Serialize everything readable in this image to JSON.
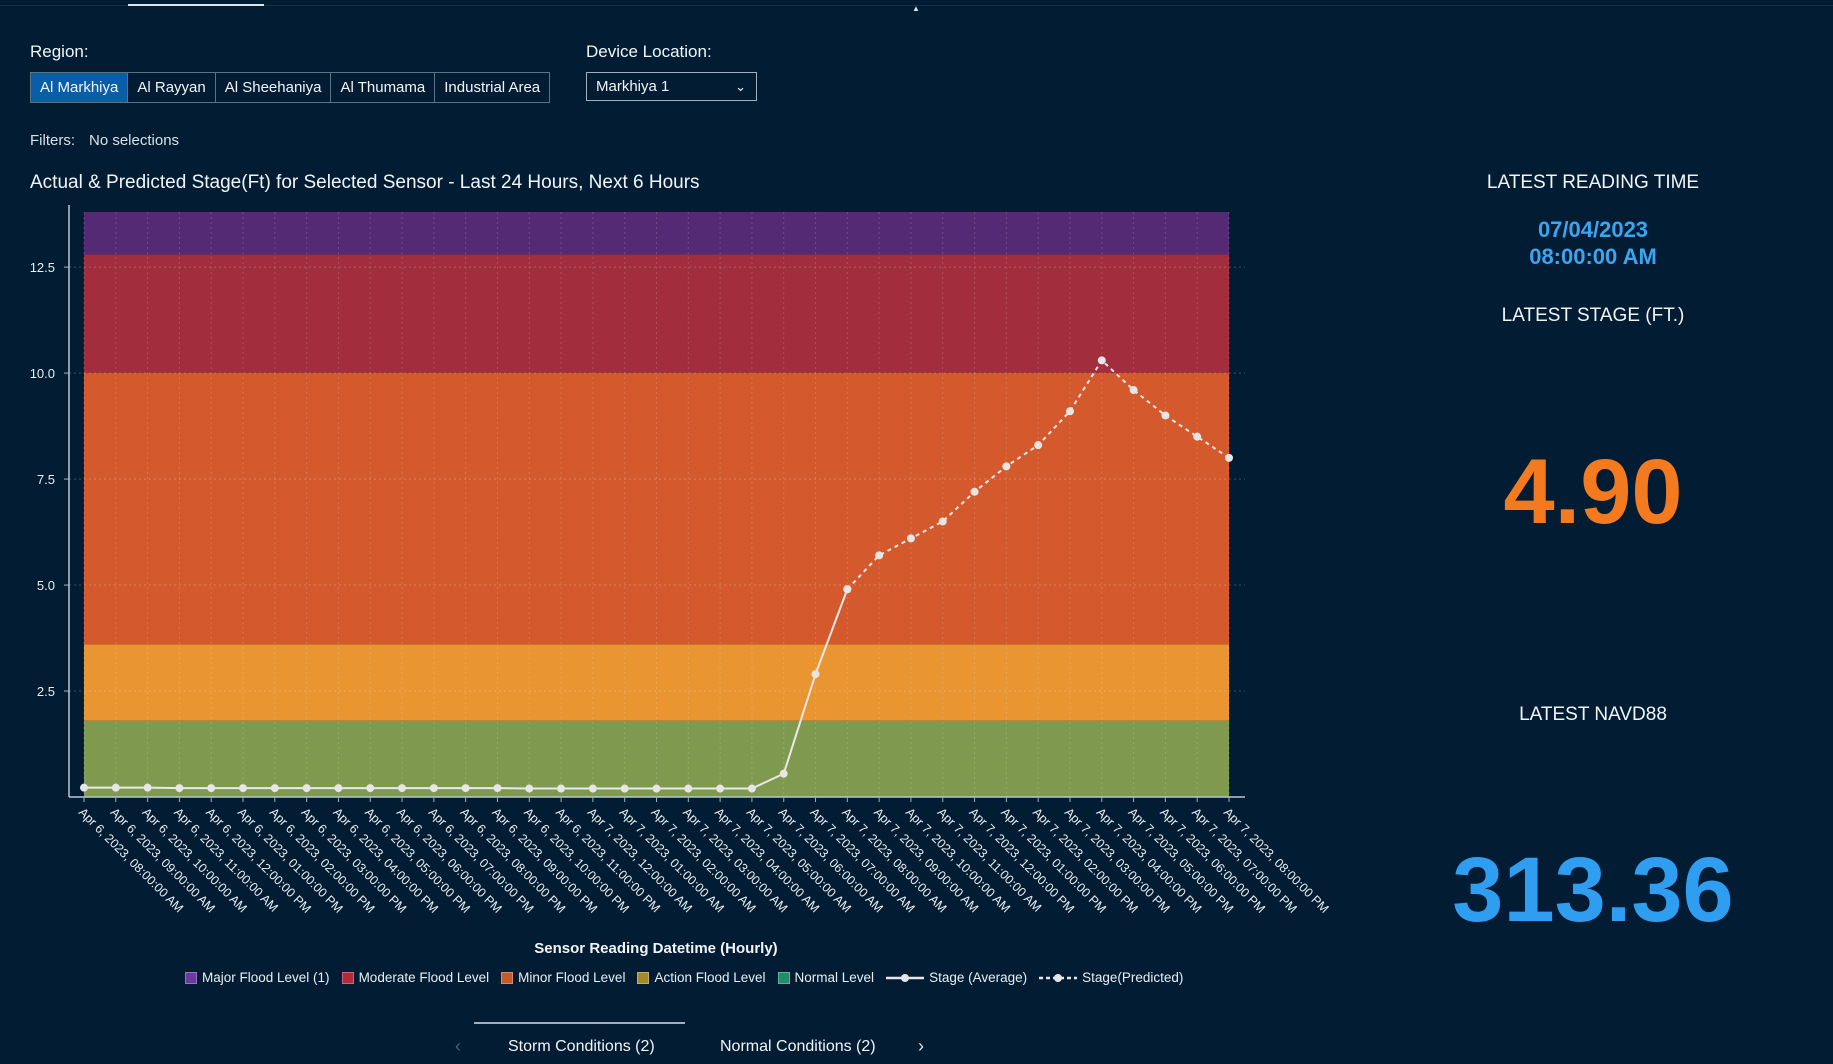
{
  "region": {
    "label": "Region:",
    "options": [
      "Al Markhiya",
      "Al Rayyan",
      "Al Sheehaniya",
      "Al Thumama",
      "Industrial Area"
    ],
    "selected": "Al Markhiya"
  },
  "device": {
    "label": "Device Location:",
    "value": "Markhiya 1"
  },
  "filters": {
    "label": "Filters:",
    "value": "No selections"
  },
  "chart_title": "Actual & Predicted Stage(Ft) for Selected Sensor - Last 24 Hours, Next 6 Hours",
  "chart_data": {
    "type": "line",
    "title": "Actual & Predicted Stage(Ft) for Selected Sensor - Last 24 Hours, Next 6 Hours",
    "xlabel": "Sensor Reading Datetime (Hourly)",
    "ylabel": "",
    "ylim": [
      0,
      13.8
    ],
    "yticks": [
      "2.5",
      "5.0",
      "7.5",
      "10.0",
      "12.5"
    ],
    "grid": true,
    "categories": [
      "Apr 6, 2023, 08:00:00 AM",
      "Apr 6, 2023, 09:00:00 AM",
      "Apr 6, 2023, 10:00:00 AM",
      "Apr 6, 2023, 11:00:00 AM",
      "Apr 6, 2023, 12:00:00 PM",
      "Apr 6, 2023, 01:00:00 PM",
      "Apr 6, 2023, 02:00:00 PM",
      "Apr 6, 2023, 03:00:00 PM",
      "Apr 6, 2023, 04:00:00 PM",
      "Apr 6, 2023, 05:00:00 PM",
      "Apr 6, 2023, 06:00:00 PM",
      "Apr 6, 2023, 07:00:00 PM",
      "Apr 6, 2023, 08:00:00 PM",
      "Apr 6, 2023, 09:00:00 PM",
      "Apr 6, 2023, 10:00:00 PM",
      "Apr 6, 2023, 11:00:00 PM",
      "Apr 7, 2023, 12:00:00 AM",
      "Apr 7, 2023, 01:00:00 AM",
      "Apr 7, 2023, 02:00:00 AM",
      "Apr 7, 2023, 03:00:00 AM",
      "Apr 7, 2023, 04:00:00 AM",
      "Apr 7, 2023, 05:00:00 AM",
      "Apr 7, 2023, 06:00:00 AM",
      "Apr 7, 2023, 07:00:00 AM",
      "Apr 7, 2023, 08:00:00 AM",
      "Apr 7, 2023, 09:00:00 AM",
      "Apr 7, 2023, 10:00:00 AM",
      "Apr 7, 2023, 11:00:00 AM",
      "Apr 7, 2023, 12:00:00 PM",
      "Apr 7, 2023, 01:00:00 PM",
      "Apr 7, 2023, 02:00:00 PM",
      "Apr 7, 2023, 03:00:00 PM",
      "Apr 7, 2023, 04:00:00 PM",
      "Apr 7, 2023, 05:00:00 PM",
      "Apr 7, 2023, 06:00:00 PM",
      "Apr 7, 2023, 07:00:00 PM",
      "Apr 7, 2023, 08:00:00 PM"
    ],
    "bands": [
      {
        "name": "Normal Level",
        "from": 0,
        "to": 1.8,
        "color": "#7f9a4e"
      },
      {
        "name": "Action Flood Level",
        "from": 1.8,
        "to": 3.6,
        "color": "#e89532"
      },
      {
        "name": "Minor Flood Level",
        "from": 3.6,
        "to": 10.0,
        "color": "#d45a2e"
      },
      {
        "name": "Moderate Flood Level",
        "from": 10.0,
        "to": 12.8,
        "color": "#a22d3d"
      },
      {
        "name": "Major Flood Level (1)",
        "from": 12.8,
        "to": 13.8,
        "color": "#552a74"
      }
    ],
    "series": [
      {
        "name": "Stage (Average)",
        "style": "solid",
        "values": [
          0.22,
          0.22,
          0.22,
          0.21,
          0.21,
          0.21,
          0.21,
          0.21,
          0.21,
          0.21,
          0.21,
          0.21,
          0.21,
          0.21,
          0.2,
          0.2,
          0.2,
          0.2,
          0.2,
          0.2,
          0.2,
          0.2,
          0.55,
          2.9,
          4.9,
          null,
          null,
          null,
          null,
          null,
          null,
          null,
          null,
          null,
          null,
          null,
          null
        ]
      },
      {
        "name": "Stage(Predicted)",
        "style": "dashed",
        "values": [
          null,
          null,
          null,
          null,
          null,
          null,
          null,
          null,
          null,
          null,
          null,
          null,
          null,
          null,
          null,
          null,
          null,
          null,
          null,
          null,
          null,
          null,
          null,
          null,
          4.9,
          5.7,
          6.1,
          6.5,
          7.2,
          7.8,
          8.3,
          9.1,
          10.3,
          9.6,
          9.0,
          8.5,
          8.0
        ]
      }
    ],
    "legend": [
      {
        "label": "Major Flood Level (1)",
        "color": "#6b3aa0",
        "kind": "box"
      },
      {
        "label": "Moderate Flood Level",
        "color": "#b02a3a",
        "kind": "box"
      },
      {
        "label": "Minor Flood Level",
        "color": "#c65a2a",
        "kind": "box"
      },
      {
        "label": "Action Flood Level",
        "color": "#a48a2a",
        "kind": "box"
      },
      {
        "label": "Normal Level",
        "color": "#1f8f6a",
        "kind": "box"
      },
      {
        "label": "Stage (Average)",
        "color": "#e6e6e6",
        "kind": "solid"
      },
      {
        "label": "Stage(Predicted)",
        "color": "#e6e6e6",
        "kind": "dashed"
      }
    ]
  },
  "bottom_tabs": {
    "prev": "‹",
    "next": "›",
    "tabs": [
      "Storm Conditions (2)",
      "Normal Conditions (2)"
    ]
  },
  "right_panel": {
    "reading_time_title": "LATEST READING TIME",
    "reading_date": "07/04/2023",
    "reading_time": "08:00:00 AM",
    "stage_title": "LATEST STAGE (FT.)",
    "stage_value": "4.90",
    "navd_title": "LATEST NAVD88",
    "navd_value": "313.36"
  },
  "colors": {
    "background": "#021d33",
    "accent_blue": "#2f9ef0",
    "accent_orange": "#f47a20",
    "active_tab": "#0a5ea8"
  }
}
